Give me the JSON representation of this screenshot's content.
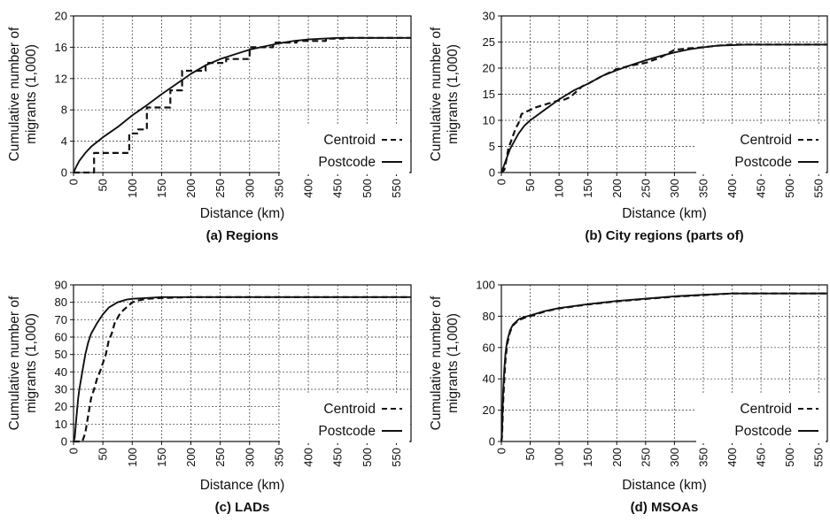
{
  "chart_data": [
    {
      "type": "line",
      "caption": "(a) Regions",
      "xlabel": "Distance (km)",
      "ylabel": "Cumulative number of migrants (1,000)",
      "xlim": [
        0,
        575
      ],
      "ylim": [
        0,
        20
      ],
      "xticks": [
        0,
        50,
        100,
        150,
        200,
        250,
        300,
        350,
        400,
        450,
        500,
        550
      ],
      "yticks": [
        0,
        4,
        8,
        12,
        16,
        20
      ],
      "grid": true,
      "legend_position": "lower-right",
      "series": [
        {
          "name": "Centroid",
          "style": "dashed",
          "step": true,
          "x": [
            0,
            35,
            35,
            95,
            95,
            110,
            110,
            125,
            125,
            165,
            165,
            185,
            185,
            225,
            225,
            260,
            260,
            300,
            300,
            340,
            340,
            380,
            380,
            430,
            430,
            460,
            460,
            575
          ],
          "y": [
            0,
            0,
            2.5,
            2.5,
            5.0,
            5.0,
            5.5,
            5.5,
            8.3,
            8.3,
            10.5,
            10.5,
            13.0,
            13.0,
            14.0,
            14.0,
            14.5,
            14.5,
            16.0,
            16.0,
            16.6,
            16.6,
            16.8,
            16.8,
            17.1,
            17.1,
            17.2,
            17.2
          ]
        },
        {
          "name": "Postcode",
          "style": "solid",
          "x": [
            0,
            5,
            10,
            20,
            30,
            50,
            75,
            100,
            125,
            150,
            175,
            200,
            225,
            250,
            275,
            300,
            325,
            350,
            375,
            400,
            425,
            450,
            475,
            500,
            575
          ],
          "y": [
            0,
            0.8,
            1.5,
            2.5,
            3.3,
            4.5,
            5.8,
            7.3,
            8.6,
            10.0,
            11.3,
            12.6,
            13.7,
            14.5,
            15.1,
            15.7,
            16.1,
            16.5,
            16.8,
            17.0,
            17.1,
            17.2,
            17.2,
            17.2,
            17.2
          ]
        }
      ]
    },
    {
      "type": "line",
      "caption": "(b) City regions (parts of)",
      "xlabel": "Distance (km)",
      "ylabel": "Cumulative number of migrants (1,000)",
      "xlim": [
        0,
        565
      ],
      "ylim": [
        0,
        30
      ],
      "xticks": [
        0,
        50,
        100,
        150,
        200,
        250,
        300,
        350,
        400,
        450,
        500,
        550
      ],
      "yticks": [
        0,
        5,
        10,
        15,
        20,
        25,
        30
      ],
      "grid": true,
      "legend_position": "lower-right",
      "series": [
        {
          "name": "Centroid",
          "style": "dashed",
          "x": [
            0,
            5,
            8,
            12,
            15,
            20,
            25,
            30,
            35,
            40,
            50,
            60,
            75,
            90,
            100,
            110,
            120,
            130,
            140,
            150,
            175,
            200,
            225,
            250,
            275,
            300,
            325,
            350,
            375,
            400,
            425,
            450,
            500,
            565
          ],
          "y": [
            0,
            0.5,
            2.0,
            4.5,
            5.5,
            7.0,
            8.5,
            9.5,
            11.2,
            11.5,
            12.0,
            12.5,
            13.0,
            13.5,
            13.8,
            14.0,
            14.5,
            15.5,
            16.5,
            17.0,
            18.5,
            19.8,
            20.5,
            21.0,
            22.0,
            23.5,
            23.8,
            24.0,
            24.3,
            24.5,
            24.5,
            24.5,
            24.5,
            24.5
          ]
        },
        {
          "name": "Postcode",
          "style": "solid",
          "x": [
            0,
            5,
            10,
            15,
            20,
            30,
            40,
            50,
            75,
            100,
            125,
            150,
            175,
            200,
            225,
            250,
            275,
            300,
            325,
            350,
            375,
            400,
            425,
            450,
            500,
            565
          ],
          "y": [
            0,
            1.5,
            3.0,
            4.5,
            5.5,
            7.5,
            9.0,
            10.0,
            12.0,
            14.0,
            15.7,
            17.0,
            18.5,
            19.6,
            20.6,
            21.5,
            22.3,
            23.0,
            23.6,
            24.0,
            24.3,
            24.4,
            24.5,
            24.5,
            24.5,
            24.5
          ]
        }
      ]
    },
    {
      "type": "line",
      "caption": "(c) LADs",
      "xlabel": "Distance (km)",
      "ylabel": "Cumulative number of migrants (1,000)",
      "xlim": [
        0,
        575
      ],
      "ylim": [
        0,
        90
      ],
      "xticks": [
        0,
        50,
        100,
        150,
        200,
        250,
        300,
        350,
        400,
        450,
        500,
        550
      ],
      "yticks": [
        0,
        10,
        20,
        30,
        40,
        50,
        60,
        70,
        80,
        90
      ],
      "grid": true,
      "legend_position": "lower-right",
      "series": [
        {
          "name": "Centroid",
          "style": "dashed",
          "x": [
            0,
            10,
            15,
            20,
            25,
            30,
            35,
            40,
            45,
            50,
            55,
            60,
            65,
            70,
            75,
            80,
            90,
            100,
            110,
            125,
            150,
            200,
            300,
            575
          ],
          "y": [
            0,
            0,
            0,
            5,
            15,
            25,
            30,
            36,
            40,
            45,
            50,
            58,
            62,
            68,
            71,
            74,
            77,
            80,
            81,
            82,
            82.5,
            83,
            83,
            83
          ]
        },
        {
          "name": "Postcode",
          "style": "solid",
          "x": [
            0,
            2,
            5,
            8,
            10,
            15,
            20,
            25,
            30,
            40,
            50,
            60,
            75,
            90,
            100,
            125,
            150,
            200,
            300,
            575
          ],
          "y": [
            0,
            2,
            14,
            25,
            30,
            40,
            50,
            57,
            62,
            68,
            73,
            77,
            80,
            81.5,
            82,
            82.5,
            83,
            83,
            83,
            83
          ]
        }
      ]
    },
    {
      "type": "line",
      "caption": "(d) MSOAs",
      "xlabel": "Distance (km)",
      "ylabel": "Cumulative number of migrants (1,000)",
      "xlim": [
        0,
        565
      ],
      "ylim": [
        0,
        100
      ],
      "xticks": [
        0,
        50,
        100,
        150,
        200,
        250,
        300,
        350,
        400,
        450,
        500,
        550
      ],
      "yticks": [
        0,
        20,
        40,
        60,
        80,
        100
      ],
      "grid": true,
      "legend_position": "lower-right",
      "series": [
        {
          "name": "Centroid",
          "style": "dashed",
          "x": [
            0,
            1,
            2,
            3,
            5,
            7,
            10,
            15,
            20,
            30,
            40,
            50,
            75,
            100,
            150,
            200,
            250,
            300,
            350,
            400,
            450,
            500,
            565
          ],
          "y": [
            0,
            3,
            12,
            25,
            40,
            52,
            62,
            70,
            74,
            77.5,
            79,
            80,
            83,
            85,
            87.5,
            89.5,
            91,
            92.5,
            93.5,
            94.5,
            94.5,
            94.5,
            94.5
          ]
        },
        {
          "name": "Postcode",
          "style": "solid",
          "x": [
            0,
            1,
            2,
            3,
            5,
            7,
            10,
            15,
            20,
            30,
            40,
            50,
            75,
            100,
            150,
            200,
            250,
            300,
            350,
            400,
            450,
            500,
            565
          ],
          "y": [
            0,
            5,
            18,
            32,
            46,
            56,
            64,
            71,
            74.5,
            78,
            79.5,
            80.5,
            83.2,
            85.2,
            87.7,
            89.7,
            91.2,
            92.7,
            93.7,
            94.5,
            94.5,
            94.5,
            94.5
          ]
        }
      ]
    }
  ]
}
